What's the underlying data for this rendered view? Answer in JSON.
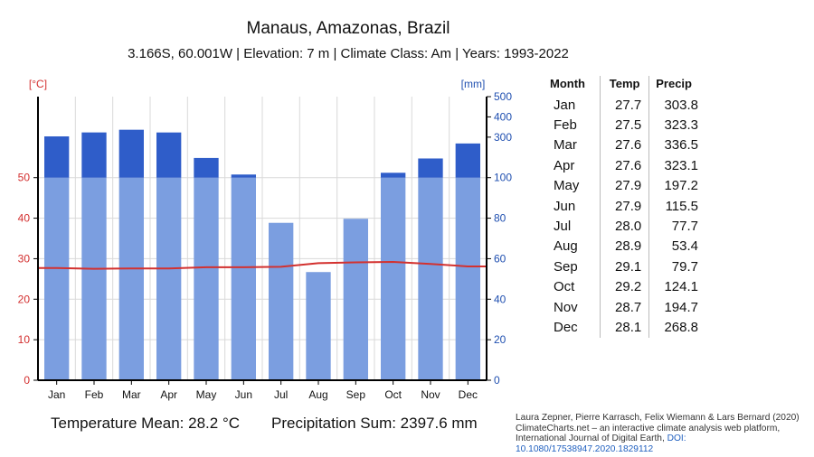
{
  "header": {
    "title": "Manaus, Amazonas, Brazil",
    "subtitle": "3.166S, 60.001W | Elevation: 7 m | Climate Class: Am | Years: 1993-2022"
  },
  "chart_data": {
    "type": "climate-bar-line",
    "categories": [
      "Jan",
      "Feb",
      "Mar",
      "Apr",
      "May",
      "Jun",
      "Jul",
      "Aug",
      "Sep",
      "Oct",
      "Nov",
      "Dec"
    ],
    "series": [
      {
        "name": "Precipitation",
        "unit": "mm",
        "axis": "right",
        "values": [
          303.8,
          323.3,
          336.5,
          323.1,
          197.2,
          115.5,
          77.7,
          53.4,
          79.7,
          124.1,
          194.7,
          268.8
        ]
      },
      {
        "name": "Temperature",
        "unit": "°C",
        "axis": "left",
        "values": [
          27.7,
          27.5,
          27.6,
          27.6,
          27.9,
          27.9,
          28.0,
          28.9,
          29.1,
          29.2,
          28.7,
          28.1
        ]
      }
    ],
    "left_axis": {
      "label": "[°C]",
      "ticks": [
        0,
        10,
        20,
        30,
        40,
        50
      ],
      "ylim": [
        0,
        70
      ]
    },
    "right_axis": {
      "label": "[mm]",
      "ticks": [
        0,
        20,
        40,
        60,
        80,
        100,
        300,
        400,
        500
      ],
      "tick_labels": [
        "0",
        "20",
        "40",
        "60",
        "80",
        "100",
        "300",
        "400",
        "500"
      ],
      "note": "linear 0-100 mm, compressed scale 100-500 mm"
    },
    "xlabel": "",
    "grid": true,
    "colors": {
      "precip_light": "#7b9ee0",
      "precip_dark": "#2f5dc9",
      "temp_line": "#d3312f",
      "temp_axis": "#d32f2f",
      "precip_axis": "#1f4fb0"
    }
  },
  "table": {
    "headers": [
      "Month",
      "Temp",
      "Precip"
    ],
    "rows": [
      [
        "Jan",
        "27.7",
        "303.8"
      ],
      [
        "Feb",
        "27.5",
        "323.3"
      ],
      [
        "Mar",
        "27.6",
        "336.5"
      ],
      [
        "Apr",
        "27.6",
        "323.1"
      ],
      [
        "May",
        "27.9",
        "197.2"
      ],
      [
        "Jun",
        "27.9",
        "115.5"
      ],
      [
        "Jul",
        "28.0",
        "77.7"
      ],
      [
        "Aug",
        "28.9",
        "53.4"
      ],
      [
        "Sep",
        "29.1",
        "79.7"
      ],
      [
        "Oct",
        "29.2",
        "124.1"
      ],
      [
        "Nov",
        "28.7",
        "194.7"
      ],
      [
        "Dec",
        "28.1",
        "268.8"
      ]
    ]
  },
  "summary": {
    "temperature_mean": "Temperature Mean: 28.2 °C",
    "precipitation_sum": "Precipitation Sum: 2397.6 mm"
  },
  "citation": {
    "authors": "Laura Zepner, Pierre Karrasch, Felix Wiemann & Lars Bernard (2020)",
    "line2": "ClimateCharts.net – an interactive climate analysis web platform,",
    "line3": "International Journal of Digital Earth,",
    "doi_label": "DOI:",
    "doi": "10.1080/17538947.2020.1829112"
  }
}
